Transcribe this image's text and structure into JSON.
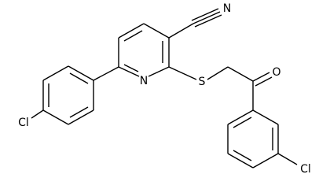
{
  "atoms": [
    {
      "label": "N"
    },
    {
      "label": "N"
    },
    {
      "label": "S"
    },
    {
      "label": "O"
    },
    {
      "label": "Cl"
    },
    {
      "label": "Cl"
    }
  ]
}
